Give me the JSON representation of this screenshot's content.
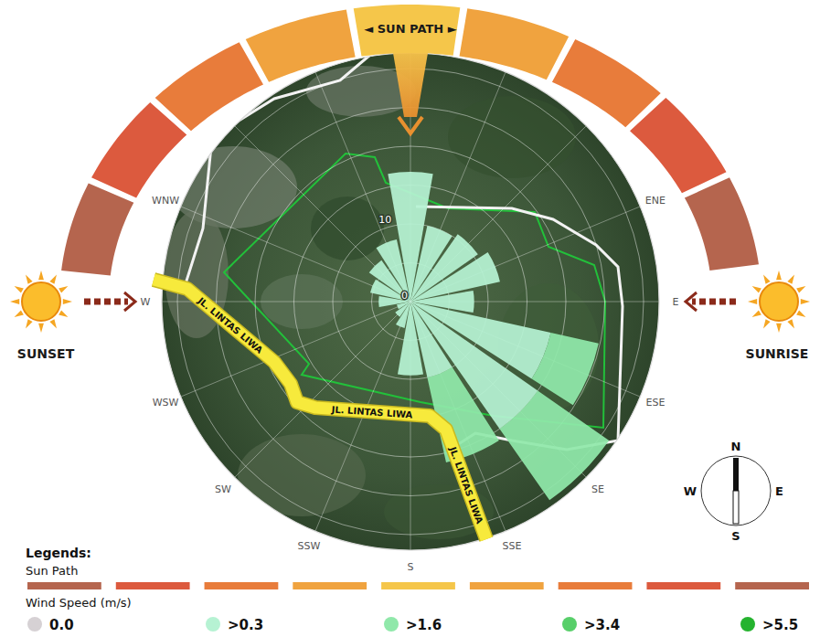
{
  "chart_data": {
    "type": "wind_rose",
    "categories": [
      null,
      null,
      null,
      "ENE",
      "E",
      "ESE",
      "SE",
      "SSE",
      "S",
      "SSW",
      "SW",
      "WSW",
      "W",
      "WNW",
      null,
      null
    ],
    "rlim": [
      0,
      32
    ],
    "rticks": [
      0,
      {
        "value": 5,
        "label": null
      },
      10,
      {
        "value": 15,
        "label": null
      },
      {
        "value": 20,
        "label": null
      },
      {
        "value": 25,
        "label": null
      },
      {
        "value": 30,
        "label": null
      }
    ],
    "grid": true,
    "stacked": true,
    "legend": "bottom",
    "legend_heading": "Legends:",
    "legend_title": "Wind Speed (m/s)",
    "series": [
      {
        "name": "0.0",
        "color": "#d6d1d4",
        "values": [
          0,
          0,
          0,
          0,
          0,
          0,
          0,
          0,
          0,
          0,
          0,
          0,
          0,
          0,
          0,
          0
        ]
      },
      {
        "name": ">0.3",
        "color": "#b6f2d3",
        "values": [
          16.7,
          10.0,
          10.6,
          11.8,
          8.2,
          18.5,
          20.0,
          10.0,
          9.5,
          3.5,
          2.4,
          1.8,
          4.1,
          5.3,
          6.5,
          8.2
        ]
      },
      {
        "name": ">1.6",
        "color": "#90e8aa",
        "values": [
          0,
          0,
          0,
          0,
          0,
          6.3,
          11.2,
          11.2,
          0,
          0,
          0,
          0,
          0,
          0,
          0,
          0
        ]
      },
      {
        "name": ">3.4",
        "color": "#58cf6a",
        "values": [
          0,
          0,
          0,
          0,
          0,
          0,
          0,
          0,
          0,
          0,
          0,
          0,
          0,
          0,
          0,
          0
        ]
      },
      {
        "name": ">5.5",
        "color": "#25b32f",
        "values": [
          0,
          0,
          0,
          0,
          0,
          0,
          0,
          0,
          0,
          0,
          0,
          0,
          0,
          0,
          0,
          0
        ]
      }
    ],
    "sun_path": {
      "label": "◄ SUN PATH ►",
      "legend_label": "Sun Path",
      "sunset": "SUNSET",
      "sunrise": "SUNRISE",
      "colors": [
        "#b5654e",
        "#dc5a3e",
        "#e87c3b",
        "#f0a33f",
        "#f5c64a",
        "#f0a33f",
        "#e87c3b",
        "#dc5a3e",
        "#b5654e"
      ]
    },
    "road_labels": [
      "JL. LINTAS LIWA",
      "JL. LINTAS LIWA",
      "JL. LINTAS LIWA"
    ],
    "compass": {
      "labels": [
        "N",
        "E",
        "S",
        "W"
      ]
    }
  }
}
